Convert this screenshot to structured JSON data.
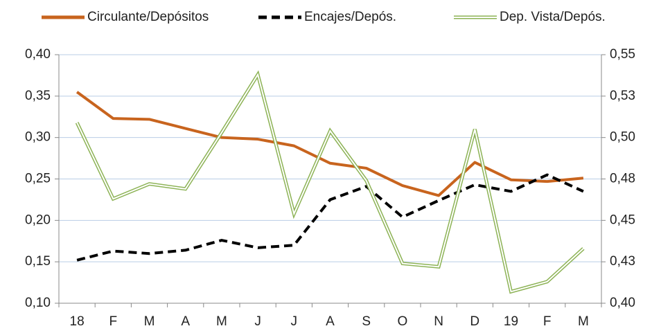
{
  "chart_data": {
    "type": "line",
    "categories": [
      "18",
      "F",
      "M",
      "A",
      "M",
      "J",
      "J",
      "A",
      "S",
      "O",
      "N",
      "D",
      "19",
      "F",
      "M"
    ],
    "series": [
      {
        "name": "Circulante/Depósitos",
        "color": "#c8641e",
        "style": "solid",
        "values": [
          0.355,
          0.323,
          0.322,
          0.311,
          0.3,
          0.298,
          0.29,
          0.269,
          0.263,
          0.242,
          0.23,
          0.27,
          0.249,
          0.247,
          0.251
        ]
      },
      {
        "name": "Encajes/Depós.",
        "color": "#000000",
        "style": "dashed",
        "values": [
          0.152,
          0.163,
          0.16,
          0.164,
          0.176,
          0.167,
          0.17,
          0.225,
          0.241,
          0.204,
          0.224,
          0.243,
          0.235,
          0.255,
          0.235
        ]
      },
      {
        "name": "Dep. Vista/Depós.",
        "color": "#8db356",
        "style": "double",
        "axis": "y2",
        "values": [
          0.509,
          0.463,
          0.472,
          0.469,
          0.503,
          0.538,
          0.454,
          0.504,
          0.474,
          0.424,
          0.422,
          0.505,
          0.407,
          0.413,
          0.433
        ]
      }
    ],
    "ylim": [
      0.1,
      0.4
    ],
    "yticks": [
      {
        "value": 0.1,
        "label": "0,10"
      },
      {
        "value": 0.15,
        "label": "0,15"
      },
      {
        "value": 0.2,
        "label": "0,20"
      },
      {
        "value": 0.25,
        "label": "0,25"
      },
      {
        "value": 0.3,
        "label": "0,30"
      },
      {
        "value": 0.35,
        "label": "0,35"
      },
      {
        "value": 0.4,
        "label": "0,40"
      }
    ],
    "y2lim": [
      0.4,
      0.55
    ],
    "y2ticks": [
      {
        "value": 0.4,
        "label": "0,40"
      },
      {
        "value": 0.425,
        "label": "0,43"
      },
      {
        "value": 0.45,
        "label": "0,45"
      },
      {
        "value": 0.475,
        "label": "0,48"
      },
      {
        "value": 0.5,
        "label": "0,50"
      },
      {
        "value": 0.525,
        "label": "0,53"
      },
      {
        "value": 0.55,
        "label": "0,55"
      }
    ],
    "grid": true,
    "legend": "top"
  }
}
